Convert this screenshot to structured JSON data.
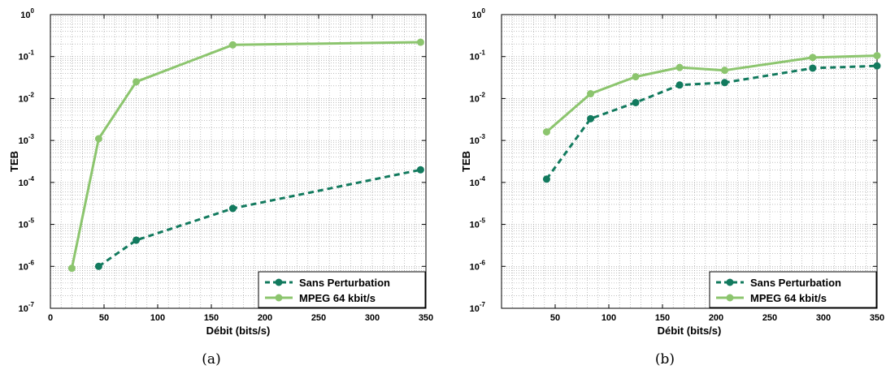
{
  "colors": {
    "sans_perturbation": "#127a5e",
    "mpeg": "#8cc56e"
  },
  "chart_data": [
    {
      "type": "line",
      "caption": "(a)",
      "xlabel": "Débit (bits/s)",
      "ylabel": "TEB",
      "xlim": [
        0,
        350
      ],
      "ylim": [
        1e-07,
        1
      ],
      "yscale": "log",
      "grid": true,
      "legend_position": "bottom-right",
      "x_ticks": [
        0,
        50,
        100,
        150,
        200,
        250,
        300,
        350
      ],
      "y_ticks": [
        {
          "base": "10",
          "exp": "-7"
        },
        {
          "base": "10",
          "exp": "-6"
        },
        {
          "base": "10",
          "exp": "-5"
        },
        {
          "base": "10",
          "exp": "-4"
        },
        {
          "base": "10",
          "exp": "-3"
        },
        {
          "base": "10",
          "exp": "-2"
        },
        {
          "base": "10",
          "exp": "-1"
        },
        {
          "base": "10",
          "exp": "0"
        }
      ],
      "series": [
        {
          "name": "Sans Perturbation",
          "style": "dashed",
          "x": [
            45,
            80,
            170,
            345
          ],
          "y": [
            1e-06,
            4.2e-06,
            2.4e-05,
            0.0002
          ]
        },
        {
          "name": "MPEG 64 kbit/s",
          "style": "solid",
          "x": [
            20,
            45,
            80,
            170,
            345
          ],
          "y": [
            9e-07,
            0.0011,
            0.025,
            0.19,
            0.22
          ]
        }
      ]
    },
    {
      "type": "line",
      "caption": "(b)",
      "xlabel": "Débit (bits/s)",
      "ylabel": "TEB",
      "xlim": [
        0,
        350
      ],
      "ylim": [
        1e-07,
        1
      ],
      "yscale": "log",
      "grid": true,
      "legend_position": "bottom-right",
      "x_ticks": [
        50,
        100,
        150,
        200,
        250,
        300,
        350
      ],
      "y_ticks": [
        {
          "base": "10",
          "exp": "-7"
        },
        {
          "base": "10",
          "exp": "-6"
        },
        {
          "base": "10",
          "exp": "-5"
        },
        {
          "base": "10",
          "exp": "-4"
        },
        {
          "base": "10",
          "exp": "-3"
        },
        {
          "base": "10",
          "exp": "-2"
        },
        {
          "base": "10",
          "exp": "-1"
        },
        {
          "base": "10",
          "exp": "0"
        }
      ],
      "series": [
        {
          "name": "Sans Perturbation",
          "style": "dashed",
          "x": [
            42,
            83,
            125,
            166,
            208,
            290,
            350
          ],
          "y": [
            0.00012,
            0.0033,
            0.008,
            0.021,
            0.024,
            0.053,
            0.06
          ]
        },
        {
          "name": "MPEG 64 kbit/s",
          "style": "solid",
          "x": [
            42,
            83,
            125,
            166,
            208,
            290,
            350
          ],
          "y": [
            0.0016,
            0.013,
            0.033,
            0.055,
            0.047,
            0.095,
            0.105
          ]
        }
      ]
    }
  ]
}
